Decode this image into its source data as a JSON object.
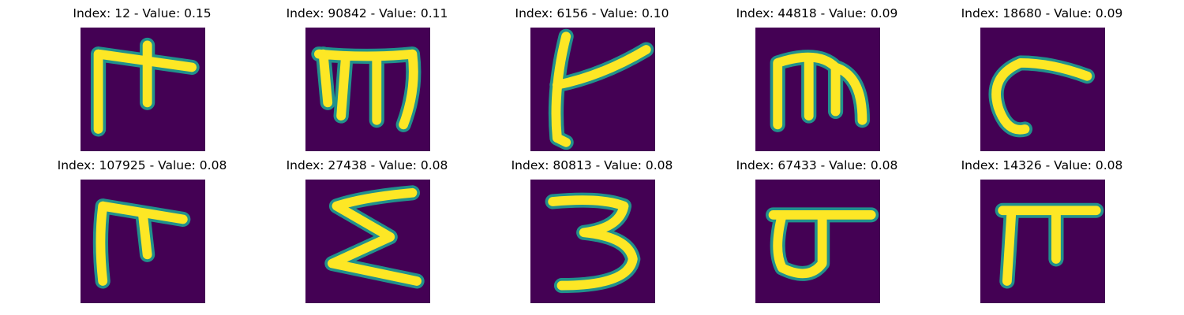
{
  "colors": {
    "background": "#440154",
    "stroke_edge": "#21918c",
    "stroke_core": "#fde725"
  },
  "panels": [
    {
      "title": "Index: 12 - Value: 0.15",
      "glyph_icon": "handwritten-stroke-m-with-dot-icon"
    },
    {
      "title": "Index: 90842 - Value: 0.11",
      "glyph_icon": "handwritten-stroke-m-icon"
    },
    {
      "title": "Index: 6156 - Value: 0.10",
      "glyph_icon": "handwritten-stroke-y-shape-icon"
    },
    {
      "title": "Index: 44818 - Value: 0.09",
      "glyph_icon": "handwritten-stroke-m-icon"
    },
    {
      "title": "Index: 18680 - Value: 0.09",
      "glyph_icon": "handwritten-stroke-hook-icon"
    },
    {
      "title": "Index: 107925 - Value: 0.08",
      "glyph_icon": "handwritten-stroke-f-shape-icon"
    },
    {
      "title": "Index: 27438 - Value: 0.08",
      "glyph_icon": "handwritten-stroke-sigma-icon"
    },
    {
      "title": "Index: 80813 - Value: 0.08",
      "glyph_icon": "handwritten-stroke-three-icon"
    },
    {
      "title": "Index: 67433 - Value: 0.08",
      "glyph_icon": "handwritten-stroke-loop-with-bar-icon"
    },
    {
      "title": "Index: 14326 - Value: 0.08",
      "glyph_icon": "handwritten-stroke-pi-icon"
    }
  ]
}
